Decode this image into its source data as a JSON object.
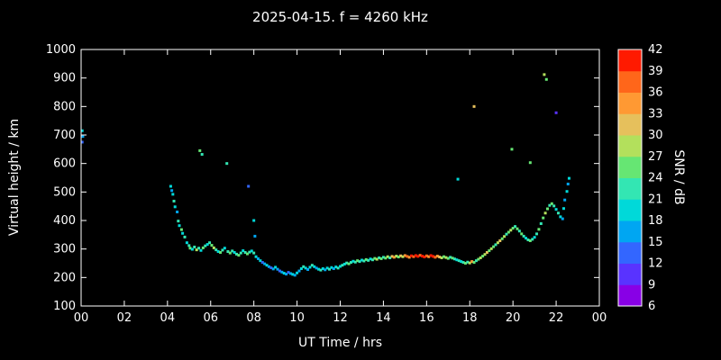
{
  "title": "2025-04-15. f = 4260 kHz",
  "colors": {
    "background": "#000000",
    "frame": "#ffffff",
    "text": "#ffffff"
  },
  "axes": {
    "x": {
      "label": "UT Time / hrs",
      "tick_values": [
        0,
        2,
        4,
        6,
        8,
        10,
        12,
        14,
        16,
        18,
        20,
        22,
        24
      ],
      "tick_labels": [
        "00",
        "02",
        "04",
        "06",
        "08",
        "10",
        "12",
        "14",
        "16",
        "18",
        "20",
        "22",
        "00"
      ]
    },
    "y": {
      "label": "Virtual height / km",
      "tick_values": [
        100,
        200,
        300,
        400,
        500,
        600,
        700,
        800,
        900,
        1000
      ]
    }
  },
  "colorbar": {
    "label": "SNR / dB",
    "min": 6,
    "max": 42,
    "tick_values": [
      42,
      39,
      36,
      33,
      30,
      27,
      24,
      21,
      18,
      15,
      12,
      9,
      6
    ],
    "band_colors_bottom_to_top": [
      "#8800e6",
      "#5933ff",
      "#3366ff",
      "#00a6f2",
      "#00d9d9",
      "#33e6b3",
      "#66e673",
      "#b3e05c",
      "#e6c05c",
      "#ff9933",
      "#ff661a",
      "#ff1a00"
    ]
  },
  "chart_data": {
    "type": "scatter",
    "title": "2025-04-15. f = 4260 kHz",
    "xlabel": "UT Time / hrs",
    "ylabel": "Virtual height / km",
    "xlim": [
      0,
      24
    ],
    "ylim": [
      100,
      1000
    ],
    "grid": false,
    "color_dimension": "SNR / dB",
    "clim": [
      6,
      42
    ],
    "points_format": [
      "ut_hours",
      "virtual_height_km",
      "snr_db"
    ],
    "points": [
      [
        0.05,
        715,
        18
      ],
      [
        0.08,
        695,
        15
      ],
      [
        0.05,
        675,
        12
      ],
      [
        4.15,
        520,
        18
      ],
      [
        4.2,
        505,
        15
      ],
      [
        4.25,
        492,
        18
      ],
      [
        4.3,
        468,
        21
      ],
      [
        4.35,
        448,
        18
      ],
      [
        4.45,
        430,
        15
      ],
      [
        4.5,
        398,
        21
      ],
      [
        4.55,
        382,
        18
      ],
      [
        4.65,
        368,
        24
      ],
      [
        4.7,
        355,
        18
      ],
      [
        4.8,
        342,
        21
      ],
      [
        4.9,
        322,
        18
      ],
      [
        5.0,
        312,
        21
      ],
      [
        5.05,
        303,
        24
      ],
      [
        5.15,
        299,
        18
      ],
      [
        5.25,
        307,
        21
      ],
      [
        5.35,
        297,
        27
      ],
      [
        5.45,
        303,
        21
      ],
      [
        5.5,
        645,
        24
      ],
      [
        5.55,
        295,
        18
      ],
      [
        5.6,
        632,
        21
      ],
      [
        5.65,
        304,
        24
      ],
      [
        5.75,
        311,
        21
      ],
      [
        5.85,
        316,
        18
      ],
      [
        5.95,
        322,
        21
      ],
      [
        6.05,
        313,
        24
      ],
      [
        6.15,
        304,
        27
      ],
      [
        6.25,
        297,
        21
      ],
      [
        6.35,
        291,
        18
      ],
      [
        6.45,
        288,
        24
      ],
      [
        6.55,
        296,
        21
      ],
      [
        6.65,
        303,
        18
      ],
      [
        6.75,
        600,
        21
      ],
      [
        6.8,
        291,
        21
      ],
      [
        6.9,
        286,
        24
      ],
      [
        7.0,
        293,
        21
      ],
      [
        7.1,
        288,
        18
      ],
      [
        7.2,
        282,
        21
      ],
      [
        7.3,
        278,
        24
      ],
      [
        7.4,
        286,
        21
      ],
      [
        7.5,
        294,
        18
      ],
      [
        7.6,
        288,
        21
      ],
      [
        7.7,
        283,
        24
      ],
      [
        7.75,
        520,
        12
      ],
      [
        7.8,
        289,
        21
      ],
      [
        7.9,
        293,
        18
      ],
      [
        8.0,
        400,
        18
      ],
      [
        8.0,
        286,
        21
      ],
      [
        8.05,
        345,
        15
      ],
      [
        8.1,
        273,
        18
      ],
      [
        8.2,
        266,
        15
      ],
      [
        8.3,
        259,
        18
      ],
      [
        8.4,
        253,
        12
      ],
      [
        8.5,
        248,
        15
      ],
      [
        8.6,
        243,
        18
      ],
      [
        8.7,
        238,
        15
      ],
      [
        8.8,
        234,
        12
      ],
      [
        8.9,
        230,
        15
      ],
      [
        9.0,
        236,
        18
      ],
      [
        9.1,
        229,
        15
      ],
      [
        9.2,
        223,
        12
      ],
      [
        9.3,
        219,
        15
      ],
      [
        9.4,
        215,
        18
      ],
      [
        9.5,
        212,
        15
      ],
      [
        9.6,
        218,
        12
      ],
      [
        9.7,
        214,
        15
      ],
      [
        9.8,
        211,
        18
      ],
      [
        9.9,
        208,
        15
      ],
      [
        10.0,
        216,
        18
      ],
      [
        10.1,
        223,
        15
      ],
      [
        10.2,
        231,
        18
      ],
      [
        10.3,
        238,
        21
      ],
      [
        10.4,
        233,
        18
      ],
      [
        10.5,
        228,
        15
      ],
      [
        10.6,
        236,
        18
      ],
      [
        10.7,
        243,
        21
      ],
      [
        10.8,
        238,
        18
      ],
      [
        10.9,
        233,
        15
      ],
      [
        11.0,
        229,
        18
      ],
      [
        11.1,
        226,
        21
      ],
      [
        11.2,
        231,
        18
      ],
      [
        11.3,
        227,
        15
      ],
      [
        11.4,
        233,
        18
      ],
      [
        11.5,
        229,
        21
      ],
      [
        11.6,
        235,
        18
      ],
      [
        11.7,
        231,
        15
      ],
      [
        11.8,
        237,
        18
      ],
      [
        11.9,
        233,
        21
      ],
      [
        12.0,
        239,
        18
      ],
      [
        12.1,
        243,
        21
      ],
      [
        12.2,
        247,
        18
      ],
      [
        12.3,
        251,
        21
      ],
      [
        12.4,
        248,
        24
      ],
      [
        12.5,
        253,
        21
      ],
      [
        12.6,
        257,
        18
      ],
      [
        12.7,
        254,
        21
      ],
      [
        12.8,
        259,
        24
      ],
      [
        12.9,
        256,
        21
      ],
      [
        13.0,
        261,
        18
      ],
      [
        13.1,
        258,
        21
      ],
      [
        13.2,
        263,
        24
      ],
      [
        13.3,
        260,
        21
      ],
      [
        13.4,
        265,
        18
      ],
      [
        13.5,
        262,
        21
      ],
      [
        13.6,
        267,
        24
      ],
      [
        13.7,
        264,
        27
      ],
      [
        13.8,
        269,
        21
      ],
      [
        13.9,
        266,
        24
      ],
      [
        14.0,
        271,
        21
      ],
      [
        14.1,
        268,
        24
      ],
      [
        14.2,
        273,
        27
      ],
      [
        14.3,
        269,
        21
      ],
      [
        14.4,
        274,
        30
      ],
      [
        14.5,
        271,
        33
      ],
      [
        14.6,
        275,
        27
      ],
      [
        14.7,
        272,
        24
      ],
      [
        14.8,
        276,
        30
      ],
      [
        14.9,
        273,
        27
      ],
      [
        15.0,
        277,
        33
      ],
      [
        15.1,
        274,
        36
      ],
      [
        15.2,
        271,
        33
      ],
      [
        15.3,
        276,
        39
      ],
      [
        15.4,
        273,
        36
      ],
      [
        15.5,
        277,
        42
      ],
      [
        15.6,
        274,
        39
      ],
      [
        15.7,
        278,
        36
      ],
      [
        15.8,
        275,
        42
      ],
      [
        15.9,
        272,
        39
      ],
      [
        16.0,
        276,
        36
      ],
      [
        16.1,
        273,
        33
      ],
      [
        16.2,
        277,
        39
      ],
      [
        16.3,
        274,
        42
      ],
      [
        16.4,
        271,
        36
      ],
      [
        16.5,
        275,
        33
      ],
      [
        16.6,
        272,
        30
      ],
      [
        16.7,
        269,
        27
      ],
      [
        16.8,
        273,
        24
      ],
      [
        16.9,
        270,
        27
      ],
      [
        17.0,
        267,
        24
      ],
      [
        17.1,
        271,
        21
      ],
      [
        17.2,
        268,
        24
      ],
      [
        17.3,
        265,
        21
      ],
      [
        17.4,
        262,
        18
      ],
      [
        17.45,
        545,
        18
      ],
      [
        17.5,
        259,
        21
      ],
      [
        17.6,
        256,
        18
      ],
      [
        17.7,
        253,
        21
      ],
      [
        17.8,
        250,
        24
      ],
      [
        17.9,
        254,
        21
      ],
      [
        18.0,
        251,
        27
      ],
      [
        18.1,
        256,
        33
      ],
      [
        18.2,
        800,
        30
      ],
      [
        18.2,
        253,
        24
      ],
      [
        18.3,
        259,
        21
      ],
      [
        18.4,
        264,
        24
      ],
      [
        18.5,
        269,
        27
      ],
      [
        18.6,
        275,
        24
      ],
      [
        18.7,
        281,
        27
      ],
      [
        18.8,
        288,
        30
      ],
      [
        18.9,
        294,
        24
      ],
      [
        19.0,
        301,
        27
      ],
      [
        19.1,
        308,
        24
      ],
      [
        19.2,
        315,
        21
      ],
      [
        19.3,
        322,
        27
      ],
      [
        19.4,
        329,
        30
      ],
      [
        19.5,
        336,
        24
      ],
      [
        19.6,
        344,
        27
      ],
      [
        19.7,
        352,
        21
      ],
      [
        19.8,
        359,
        24
      ],
      [
        19.9,
        366,
        27
      ],
      [
        19.95,
        650,
        24
      ],
      [
        20.0,
        373,
        24
      ],
      [
        20.1,
        379,
        21
      ],
      [
        20.2,
        371,
        24
      ],
      [
        20.3,
        363,
        21
      ],
      [
        20.4,
        353,
        24
      ],
      [
        20.5,
        345,
        21
      ],
      [
        20.6,
        338,
        18
      ],
      [
        20.7,
        332,
        21
      ],
      [
        20.8,
        603,
        24
      ],
      [
        20.8,
        329,
        24
      ],
      [
        20.9,
        334,
        21
      ],
      [
        21.0,
        341,
        18
      ],
      [
        21.1,
        353,
        21
      ],
      [
        21.2,
        369,
        24
      ],
      [
        21.3,
        389,
        21
      ],
      [
        21.4,
        409,
        24
      ],
      [
        21.45,
        912,
        27
      ],
      [
        21.5,
        426,
        27
      ],
      [
        21.55,
        895,
        24
      ],
      [
        21.6,
        441,
        24
      ],
      [
        21.7,
        453,
        21
      ],
      [
        21.8,
        459,
        24
      ],
      [
        21.9,
        451,
        21
      ],
      [
        22.0,
        778,
        9
      ],
      [
        22.0,
        439,
        18
      ],
      [
        22.1,
        426,
        21
      ],
      [
        22.2,
        413,
        18
      ],
      [
        22.3,
        406,
        15
      ],
      [
        22.35,
        442,
        18
      ],
      [
        22.4,
        472,
        15
      ],
      [
        22.5,
        502,
        18
      ],
      [
        22.55,
        528,
        15
      ],
      [
        22.6,
        548,
        18
      ]
    ]
  }
}
